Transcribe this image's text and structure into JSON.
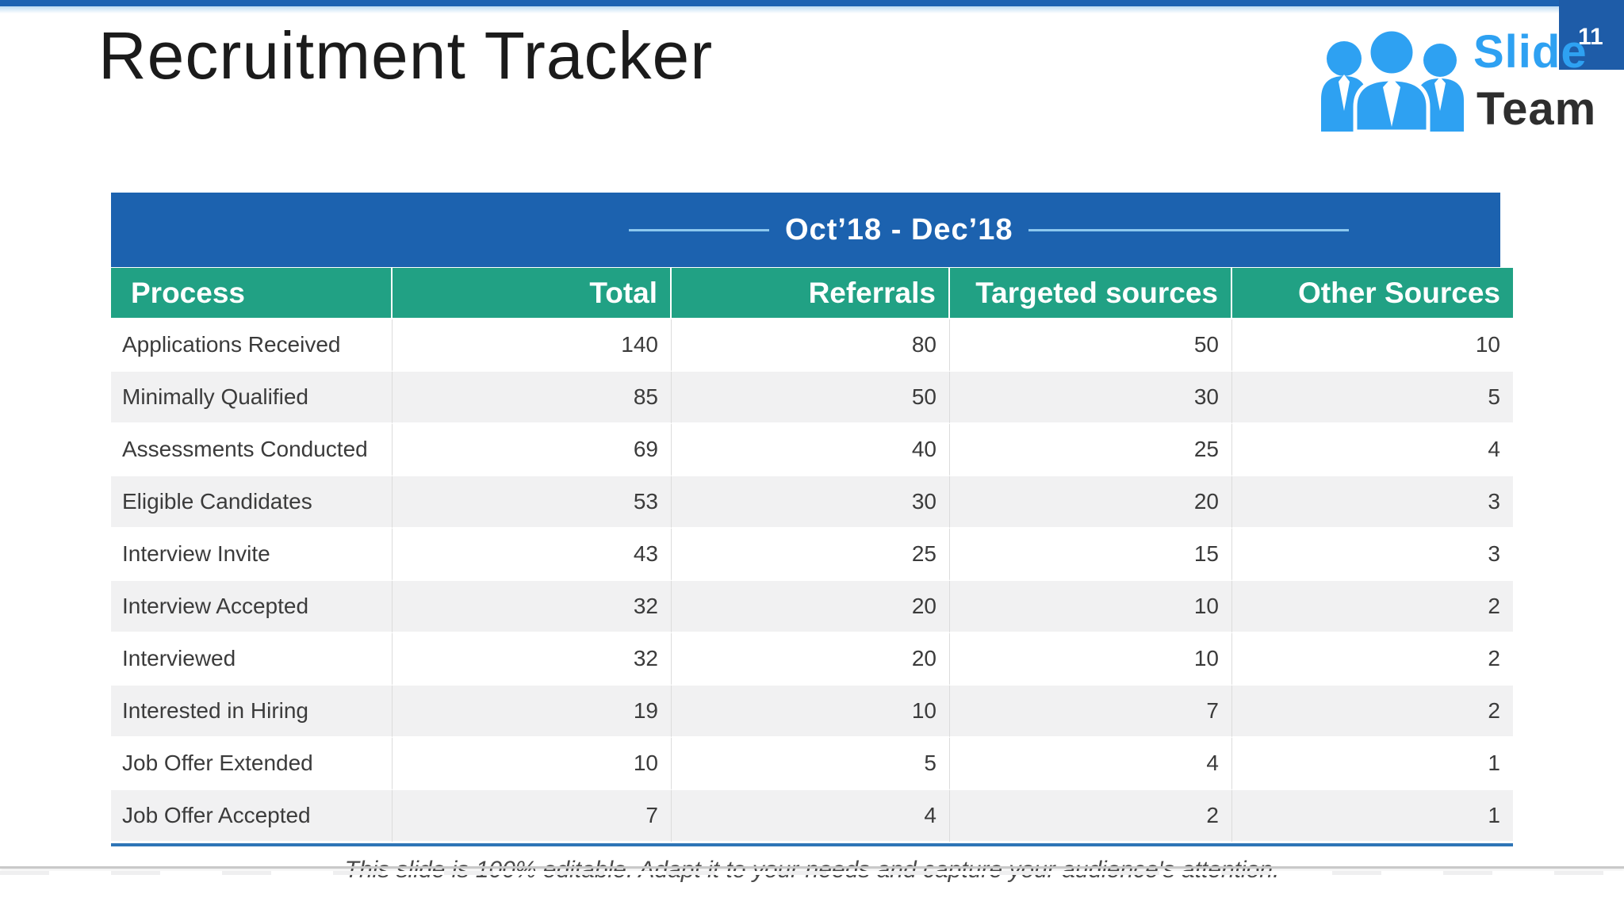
{
  "slide": {
    "title": "Recruitment Tracker",
    "page_number": "11",
    "footer_note": "This slide is 100% editable. Adapt it to your needs and capture your audience's attention."
  },
  "logo": {
    "word1": "Slide",
    "word2": "Team",
    "icon": "people-icon"
  },
  "table": {
    "period_header": "Oct’18 - Dec’18",
    "columns": [
      "Process",
      "Total",
      "Referrals",
      "Targeted sources",
      "Other Sources"
    ],
    "rows": [
      {
        "process": "Applications Received",
        "values": [
          "140",
          "80",
          "50",
          "10"
        ]
      },
      {
        "process": "Minimally Qualified",
        "values": [
          "85",
          "50",
          "30",
          "5"
        ]
      },
      {
        "process": "Assessments Conducted",
        "values": [
          "69",
          "40",
          "25",
          "4"
        ]
      },
      {
        "process": "Eligible Candidates",
        "values": [
          "53",
          "30",
          "20",
          "3"
        ]
      },
      {
        "process": "Interview Invite",
        "values": [
          "43",
          "25",
          "15",
          "3"
        ]
      },
      {
        "process": "Interview Accepted",
        "values": [
          "32",
          "20",
          "10",
          "2"
        ]
      },
      {
        "process": "Interviewed",
        "values": [
          "32",
          "20",
          "10",
          "2"
        ]
      },
      {
        "process": "Interested in Hiring",
        "values": [
          "19",
          "10",
          "7",
          "2"
        ]
      },
      {
        "process": "Job Offer Extended",
        "values": [
          "10",
          "5",
          "4",
          "1"
        ]
      },
      {
        "process": "Job Offer Accepted",
        "values": [
          "7",
          "4",
          "2",
          "1"
        ]
      }
    ]
  },
  "colors": {
    "top_bar": "#1c63b2",
    "banner_blue": "#1c62af",
    "header_green": "#21a184",
    "logo_blue": "#2ea1f2",
    "logo_dark": "#2e2e2e",
    "badge_blue": "#1e5ca8",
    "alt_row_gray": "#f1f1f2",
    "bottom_rule_blue": "#2e75b6",
    "banner_rule_light_blue": "#8cc7ee"
  }
}
